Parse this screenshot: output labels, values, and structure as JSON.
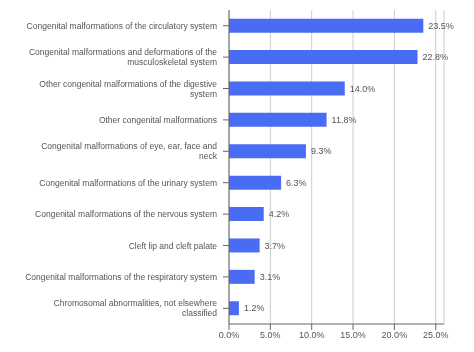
{
  "chart_data": {
    "type": "bar",
    "orientation": "horizontal",
    "categories": [
      "Chromosomal abnormalities, not elsewhere classified",
      "Congenital malformations of the respiratory system",
      "Cleft lip and cleft palate",
      "Congenital malformations of the nervous system",
      "Congenital malformations of the urinary system",
      "Congenital malformations of eye, ear, face and neck",
      "Other congenital malformations",
      "Other congenital malformations of the digestive system",
      "Congenital malformations and deformations of the\nmusculoskeletal system",
      "Congenital malformations of the circulatory system"
    ],
    "values": [
      1.2,
      3.1,
      3.7,
      4.2,
      6.3,
      9.3,
      11.8,
      14.0,
      22.8,
      23.5
    ],
    "value_labels": [
      "1.2%",
      "3.1%",
      "3.7%",
      "4.2%",
      "6.3%",
      "9.3%",
      "11.8%",
      "14.0%",
      "22.8%",
      "23.5%"
    ],
    "data_labels": true,
    "color": "#4a6cf5",
    "xlim": [
      0,
      26
    ],
    "xticks": [
      {
        "value": 0,
        "label": "0.0%"
      },
      {
        "value": 5,
        "label": "5.0%"
      },
      {
        "value": 10,
        "label": "10.0%"
      },
      {
        "value": 15,
        "label": "15.0%"
      },
      {
        "value": 20,
        "label": "20.0%"
      },
      {
        "value": 25,
        "label": "25.0%"
      }
    ],
    "grid": true
  }
}
